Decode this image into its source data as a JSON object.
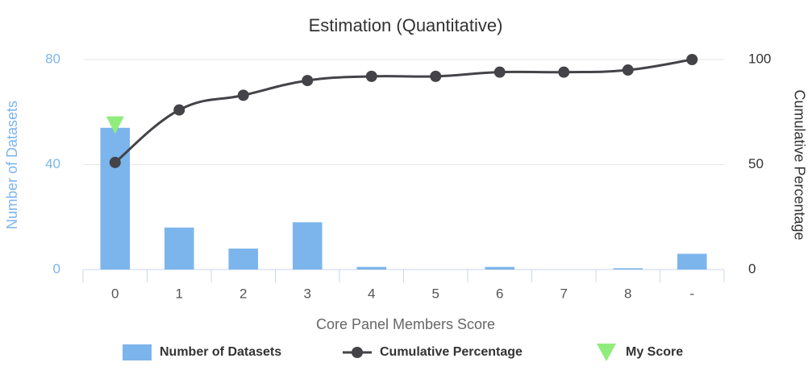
{
  "chart_data": {
    "type": "bar",
    "title": "Estimation (Quantitative)",
    "x_label": "Core Panel Members Score",
    "y_label": "Number of Datasets",
    "y2_label": "Cumulative Percentage",
    "categories": [
      "0",
      "1",
      "2",
      "3",
      "4",
      "5",
      "6",
      "7",
      "8",
      "-"
    ],
    "series": [
      {
        "name": "Number of Datasets",
        "type": "bar",
        "color": "#7cb5ec",
        "values": [
          54,
          16,
          8,
          18,
          1,
          0,
          1,
          0,
          0.5,
          6
        ]
      },
      {
        "name": "Cumulative Percentage",
        "type": "line",
        "axis": "y2",
        "color": "#434348",
        "values": [
          51,
          76,
          83,
          90,
          92,
          92,
          94,
          94,
          95,
          100
        ]
      },
      {
        "name": "My Score",
        "type": "marker",
        "color": "#90ed7d",
        "values": [
          55,
          null,
          null,
          null,
          null,
          null,
          null,
          null,
          null,
          null
        ]
      }
    ],
    "ylim": [
      0,
      80
    ],
    "yticks": [
      0,
      40,
      80
    ],
    "y2lim": [
      0,
      100
    ],
    "y2ticks": [
      0,
      50,
      100
    ],
    "grid": true,
    "legend": "bottom"
  }
}
